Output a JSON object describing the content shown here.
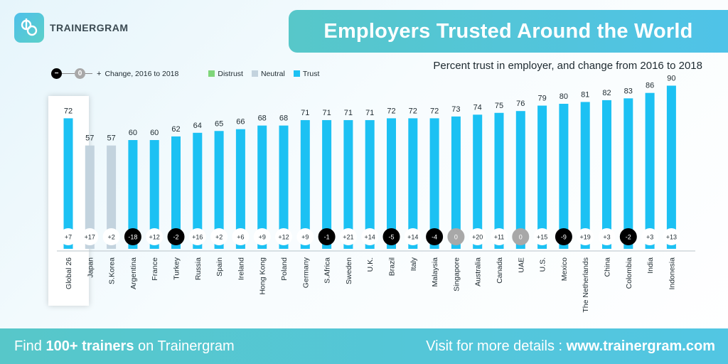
{
  "brand": {
    "name": "TRAINERGRAM",
    "logo_glyph": "tg"
  },
  "title": "Employers Trusted Around the World",
  "subtitle": "Percent trust in employer, and change from 2016 to 2018",
  "legend": {
    "neg_symbol": "−",
    "zero_symbol": "0",
    "plus_symbol": "+",
    "change_label": "Change, 2016 to 2018",
    "distrust": "Distrust",
    "neutral": "Neutral",
    "trust": "Trust"
  },
  "colors": {
    "trust": "#1cc1f3",
    "neutral": "#c3d3de",
    "distrust": "#7fd67a",
    "negative_badge": "#000000",
    "zero_badge": "#a8a8a8",
    "positive_badge": "#ffffff"
  },
  "chart_data": {
    "type": "bar",
    "categories": [
      "Global 26",
      "Japan",
      "S.Korea",
      "Argentina",
      "France",
      "Turkey",
      "Russia",
      "Spain",
      "Ireland",
      "Hong Kong",
      "Poland",
      "Germany",
      "S.Africa",
      "Sweden",
      "U.K.",
      "Brazil",
      "Italy",
      "Malaysia",
      "Singapore",
      "Australia",
      "Canada",
      "UAE",
      "U.S.",
      "Mexico",
      "The Netherlands",
      "China",
      "Colombia",
      "India",
      "Indonesia"
    ],
    "values": [
      72,
      57,
      57,
      60,
      60,
      62,
      64,
      65,
      66,
      68,
      68,
      71,
      71,
      71,
      71,
      72,
      72,
      72,
      73,
      74,
      75,
      76,
      79,
      80,
      81,
      82,
      83,
      86,
      90
    ],
    "change_labels": [
      "+7",
      "+17",
      "+2",
      "-18",
      "+12",
      "-2",
      "+16",
      "+2",
      "+6",
      "+9",
      "+12",
      "+9",
      "-1",
      "+21",
      "+14",
      "-5",
      "+14",
      "-4",
      "0",
      "+20",
      "+11",
      "0",
      "+15",
      "-9",
      "+19",
      "+3",
      "-2",
      "+3",
      "+13"
    ],
    "categories_status": [
      "trust",
      "neutral",
      "neutral",
      "trust",
      "trust",
      "trust",
      "trust",
      "trust",
      "trust",
      "trust",
      "trust",
      "trust",
      "trust",
      "trust",
      "trust",
      "trust",
      "trust",
      "trust",
      "trust",
      "trust",
      "trust",
      "trust",
      "trust",
      "trust",
      "trust",
      "trust",
      "trust",
      "trust",
      "trust"
    ],
    "ylim": [
      0,
      100
    ]
  },
  "footer": {
    "left_prefix": "Find",
    "left_bold": "100+ trainers",
    "left_suffix": "on Trainergram",
    "right_prefix": "Visit for more details :",
    "right_bold": "www.trainergram.com"
  }
}
